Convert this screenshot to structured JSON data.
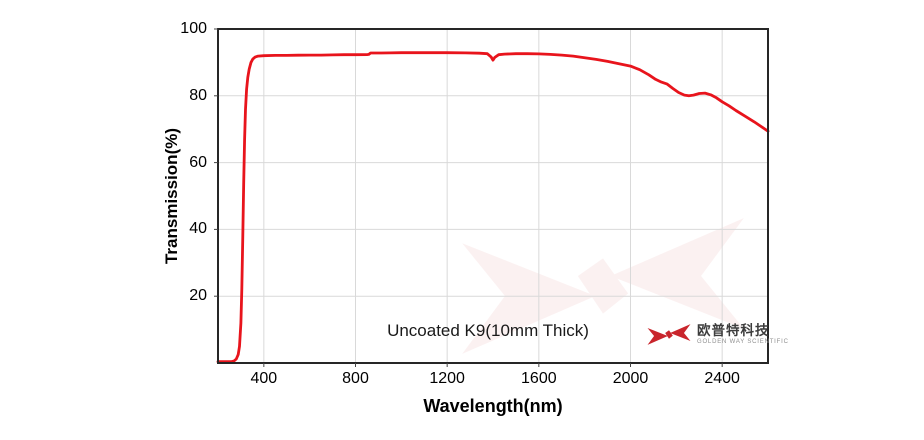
{
  "chart_data": {
    "type": "line",
    "title": "",
    "xlabel": "Wavelength(nm)",
    "ylabel": "Transmission(%)",
    "xlim": [
      200,
      2600
    ],
    "ylim": [
      0,
      100
    ],
    "x_ticks": [
      400,
      800,
      1200,
      1600,
      2000,
      2400
    ],
    "y_ticks": [
      20,
      40,
      60,
      80,
      100
    ],
    "grid": true,
    "legend_position": "none",
    "annotation": "Uncoated K9(10mm Thick)",
    "series": [
      {
        "name": "Uncoated K9(10mm Thick)",
        "color": "#e8141c",
        "points": [
          [
            200,
            0.4
          ],
          [
            230,
            0.4
          ],
          [
            258,
            0.4
          ],
          [
            270,
            0.6
          ],
          [
            280,
            1.2
          ],
          [
            288,
            2.5
          ],
          [
            294,
            5
          ],
          [
            300,
            12
          ],
          [
            304,
            22
          ],
          [
            308,
            38
          ],
          [
            312,
            54
          ],
          [
            316,
            67
          ],
          [
            320,
            76
          ],
          [
            325,
            82
          ],
          [
            330,
            85.5
          ],
          [
            336,
            88
          ],
          [
            344,
            90
          ],
          [
            352,
            91
          ],
          [
            362,
            91.6
          ],
          [
            375,
            91.9
          ],
          [
            400,
            92.0
          ],
          [
            450,
            92.1
          ],
          [
            500,
            92.1
          ],
          [
            550,
            92.15
          ],
          [
            600,
            92.2
          ],
          [
            650,
            92.2
          ],
          [
            700,
            92.25
          ],
          [
            750,
            92.3
          ],
          [
            800,
            92.3
          ],
          [
            850,
            92.35
          ],
          [
            858,
            92.4
          ],
          [
            866,
            92.8
          ],
          [
            900,
            92.8
          ],
          [
            950,
            92.85
          ],
          [
            1000,
            92.9
          ],
          [
            1100,
            92.9
          ],
          [
            1200,
            92.9
          ],
          [
            1280,
            92.85
          ],
          [
            1340,
            92.75
          ],
          [
            1375,
            92.6
          ],
          [
            1392,
            91.6
          ],
          [
            1400,
            90.7
          ],
          [
            1408,
            91.5
          ],
          [
            1425,
            92.3
          ],
          [
            1450,
            92.5
          ],
          [
            1500,
            92.6
          ],
          [
            1550,
            92.6
          ],
          [
            1600,
            92.55
          ],
          [
            1650,
            92.4
          ],
          [
            1700,
            92.2
          ],
          [
            1750,
            91.9
          ],
          [
            1800,
            91.4
          ],
          [
            1850,
            90.9
          ],
          [
            1900,
            90.3
          ],
          [
            1950,
            89.6
          ],
          [
            2000,
            88.9
          ],
          [
            2040,
            87.8
          ],
          [
            2080,
            86.3
          ],
          [
            2110,
            84.9
          ],
          [
            2135,
            84.1
          ],
          [
            2160,
            83.5
          ],
          [
            2185,
            82.2
          ],
          [
            2210,
            81.0
          ],
          [
            2235,
            80.2
          ],
          [
            2255,
            80.0
          ],
          [
            2275,
            80.2
          ],
          [
            2300,
            80.7
          ],
          [
            2325,
            80.8
          ],
          [
            2350,
            80.3
          ],
          [
            2375,
            79.4
          ],
          [
            2400,
            78.2
          ],
          [
            2430,
            77.0
          ],
          [
            2460,
            75.6
          ],
          [
            2500,
            73.9
          ],
          [
            2540,
            72.2
          ],
          [
            2570,
            70.8
          ],
          [
            2600,
            69.4
          ]
        ]
      }
    ]
  },
  "branding": {
    "logo_cn": "欧普特科技",
    "logo_en": "GOLDEN WAY SCIENTIFIC"
  },
  "colors": {
    "curve": "#e8141c",
    "grid": "#d9d9d9",
    "frame": "#262626",
    "tick": "#444444",
    "text": "#000000",
    "logo_red": "#c9252c",
    "watermark": "#c9252c",
    "background": "#ffffff"
  }
}
